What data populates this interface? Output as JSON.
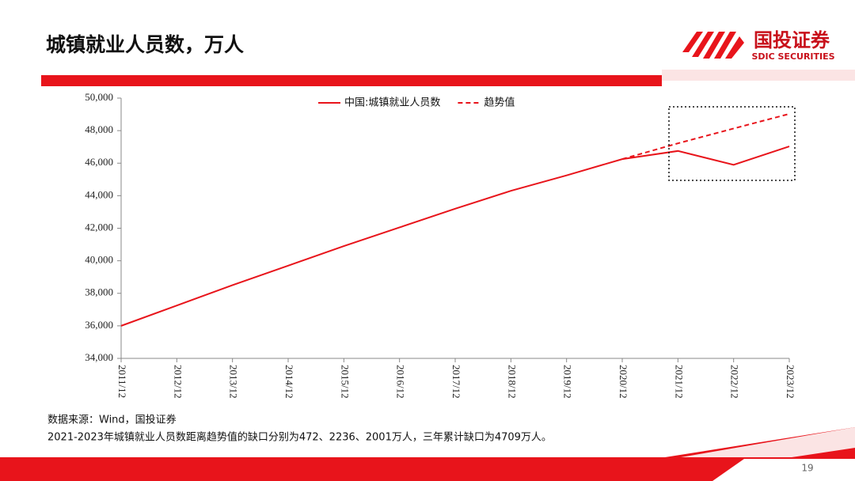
{
  "header": {
    "title": "城镇就业人员数，万人",
    "logo_name": "国投证券",
    "logo_sub": "SDIC SECURITIES"
  },
  "chart_data": {
    "type": "line",
    "categories": [
      "2011/12",
      "2012/12",
      "2013/12",
      "2014/12",
      "2015/12",
      "2016/12",
      "2017/12",
      "2018/12",
      "2019/12",
      "2020/12",
      "2021/12",
      "2022/12",
      "2023/12"
    ],
    "series": [
      {
        "name": "中国:城镇就业人员数",
        "color": "#e8141b",
        "dashed": false,
        "values": [
          36000,
          37250,
          38500,
          39700,
          40900,
          42050,
          43200,
          44300,
          45250,
          46250,
          46750,
          45900,
          47030
        ]
      },
      {
        "name": "趋势值",
        "color": "#e8141b",
        "dashed": true,
        "values": [
          null,
          null,
          null,
          null,
          null,
          null,
          null,
          null,
          null,
          46250,
          47220,
          48130,
          49030
        ]
      }
    ],
    "ylim": [
      34000,
      50000
    ],
    "yticks": [
      {
        "value": 34000,
        "label": "34,000"
      },
      {
        "value": 36000,
        "label": "36,000"
      },
      {
        "value": 38000,
        "label": "38,000"
      },
      {
        "value": 40000,
        "label": "40,000"
      },
      {
        "value": 42000,
        "label": "42,000"
      },
      {
        "value": 44000,
        "label": "44,000"
      },
      {
        "value": 46000,
        "label": "46,000"
      },
      {
        "value": 48000,
        "label": "48,000"
      },
      {
        "value": 50000,
        "label": "50,000"
      }
    ],
    "legend": "top"
  },
  "footer": {
    "source": "数据来源：Wind，国投证券",
    "note": "2021-2023年城镇就业人员数距离趋势值的缺口分别为472、2236、2001万人，三年累计缺口为4709万人。",
    "page": "19"
  }
}
